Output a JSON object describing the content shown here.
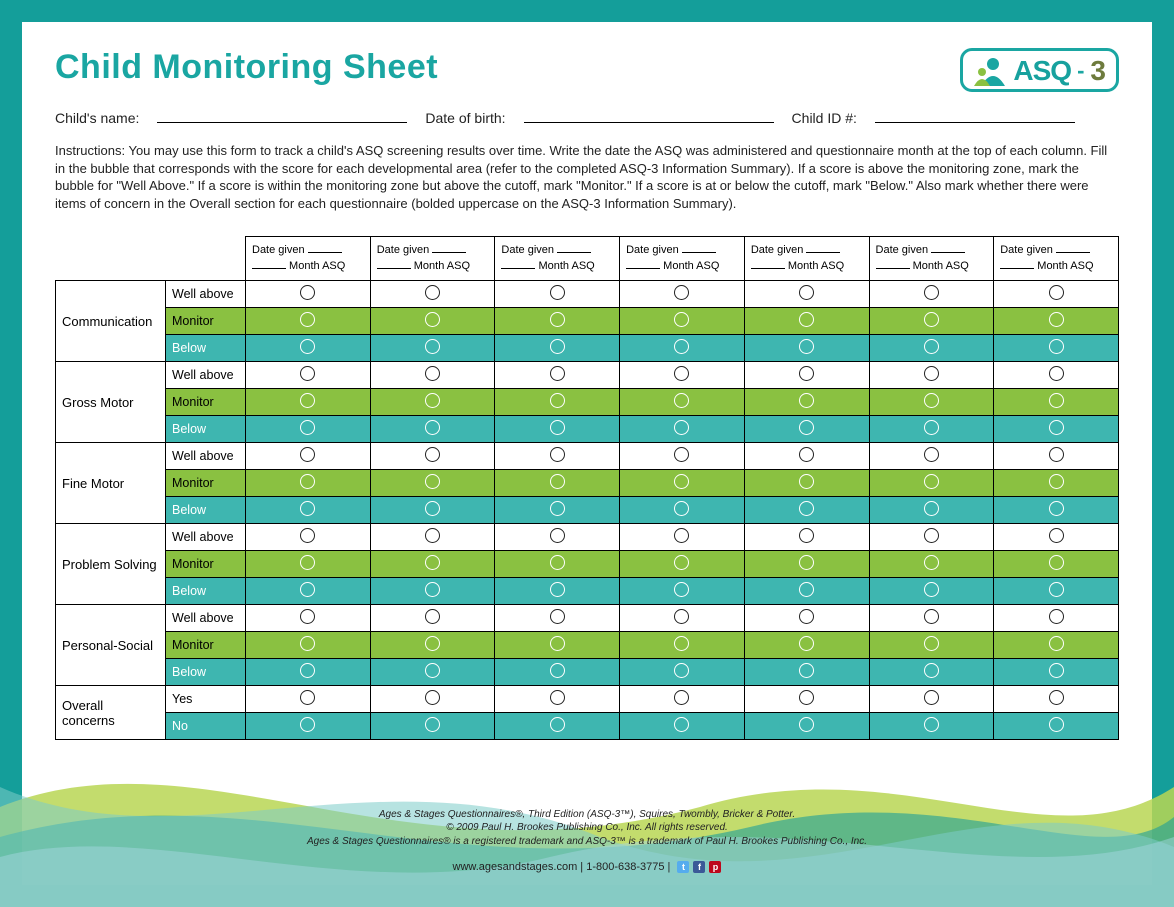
{
  "colors": {
    "frame": "#149e9a",
    "accent": "#1aa6a2",
    "monitor_row": "#8ac141",
    "below_row": "#3eb6b0",
    "text": "#222222",
    "border": "#000000",
    "wave_green": "#b8d654",
    "wave_teal_dark": "#1c9e99",
    "wave_teal_light": "#7cccc8",
    "wave_blue": "#a3d5e0"
  },
  "title": "Child Monitoring Sheet",
  "logo": {
    "brand": "ASQ",
    "suffix": "3",
    "icon_fg": "#1aa6a2",
    "icon_accent": "#8ac141"
  },
  "fields": {
    "child_name_label": "Child's name:",
    "dob_label": "Date of birth:",
    "child_id_label": "Child ID #:"
  },
  "instructions": "Instructions: You may use this form to track a child's ASQ screening results over time. Write the date the ASQ was administered and questionnaire month at the top of each column. Fill in the bubble that corresponds with the score for each developmental area (refer to the completed ASQ-3 Information Summary). If a score is above the monitoring zone, mark the bubble for \"Well Above.\" If a score is within the monitoring zone but above the cutoff, mark \"Monitor.\" If a score is at or below the cutoff, mark \"Below.\" Also mark whether there were items of concern in the Overall section for each questionnaire (bolded uppercase on the ASQ-3 Information Summary).",
  "column_header": {
    "line1_prefix": "Date given",
    "line2_suffix": "Month ASQ"
  },
  "num_columns": 7,
  "categories": [
    {
      "name": "Communication",
      "levels": [
        "Well above",
        "Monitor",
        "Below"
      ]
    },
    {
      "name": "Gross Motor",
      "levels": [
        "Well above",
        "Monitor",
        "Below"
      ]
    },
    {
      "name": "Fine Motor",
      "levels": [
        "Well above",
        "Monitor",
        "Below"
      ]
    },
    {
      "name": "Problem Solving",
      "levels": [
        "Well above",
        "Monitor",
        "Below"
      ]
    },
    {
      "name": "Personal-Social",
      "levels": [
        "Well above",
        "Monitor",
        "Below"
      ]
    },
    {
      "name": "Overall concerns",
      "levels": [
        "Yes",
        "No"
      ]
    }
  ],
  "level_styles": {
    "Well above": {
      "row_class": "above-row",
      "bubble_white": false
    },
    "Monitor": {
      "row_class": "monitor-row",
      "bubble_white": true
    },
    "Below": {
      "row_class": "below-row",
      "bubble_white": true
    },
    "Yes": {
      "row_class": "above-row",
      "bubble_white": false
    },
    "No": {
      "row_class": "below-row",
      "bubble_white": true
    }
  },
  "footer": {
    "line1": "Ages & Stages Questionnaires®, Third Edition (ASQ-3™), Squires, Twombly, Bricker & Potter.",
    "line2a": "© 2009 Paul H. Brookes Publishing Co., Inc. All rights reserved.",
    "line2b": "Ages & Stages Questionnaires® is a registered trademark and ASQ-3™ is a trademark of Paul H. Brookes Publishing Co., Inc.",
    "line3": "www.agesandstages.com | 1-800-638-3775 |",
    "social": [
      {
        "label": "t",
        "bg": "#55acee"
      },
      {
        "label": "f",
        "bg": "#3b5998"
      },
      {
        "label": "p",
        "bg": "#bd081c"
      }
    ]
  }
}
